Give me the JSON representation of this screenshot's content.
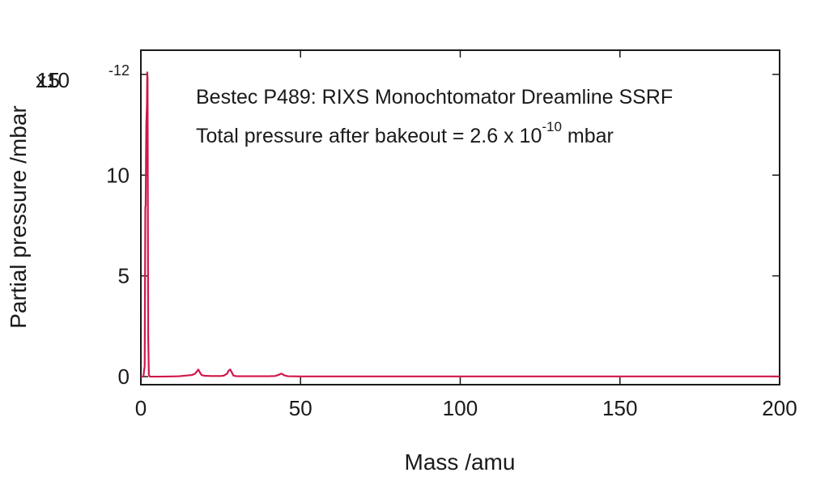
{
  "chart_data": {
    "type": "line",
    "title": "",
    "xlabel": "Mass /amu",
    "ylabel": "Partial pressure /mbar",
    "xlim": [
      0,
      200
    ],
    "ylim": [
      -0.4,
      16.2
    ],
    "x_ticks": [
      "0",
      "50",
      "100",
      "150",
      "200"
    ],
    "y_ticks": [
      "0",
      "5",
      "10",
      "15"
    ],
    "y_multiplier_base": "x10",
    "y_multiplier_exponent": "-12",
    "grid": false,
    "annotations": {
      "line1": "Bestec P489: RIXS Monochtomator Dreamline SSRF",
      "line2_prefix": "Total pressure after bakeout = 2.6 x 10",
      "line2_exponent": "-10",
      "line2_suffix": " mbar"
    },
    "series": [
      {
        "color": "#d0174a",
        "x": [
          0,
          0.8,
          1.0,
          1.2,
          1.4,
          1.5,
          1.7,
          1.9,
          2.0,
          2.1,
          2.2,
          2.3,
          2.5,
          2.7,
          3.0,
          3.5,
          5,
          10,
          12,
          14,
          16,
          17,
          17.5,
          18,
          18.5,
          19,
          20,
          22,
          25,
          26,
          27,
          27.5,
          28,
          28.5,
          29,
          30,
          32,
          35,
          40,
          42,
          43,
          44,
          45,
          46,
          50,
          60,
          70,
          80,
          90,
          100,
          110,
          120,
          130,
          140,
          150,
          160,
          170,
          180,
          190,
          200
        ],
        "y": [
          0,
          0,
          0.3,
          0.5,
          8.4,
          8.5,
          12.5,
          13.5,
          15.1,
          14.8,
          8.0,
          2.0,
          0.1,
          0.02,
          0,
          0,
          0,
          0.01,
          0.02,
          0.05,
          0.08,
          0.15,
          0.25,
          0.35,
          0.2,
          0.08,
          0.04,
          0.03,
          0.03,
          0.05,
          0.15,
          0.3,
          0.35,
          0.2,
          0.05,
          0.02,
          0.02,
          0.02,
          0.02,
          0.03,
          0.08,
          0.15,
          0.06,
          0.02,
          0.01,
          0.01,
          0.01,
          0.01,
          0.01,
          0.01,
          0.01,
          0.01,
          0.01,
          0.01,
          0.01,
          0.01,
          0.01,
          0.01,
          0.01,
          0.01
        ]
      }
    ]
  }
}
